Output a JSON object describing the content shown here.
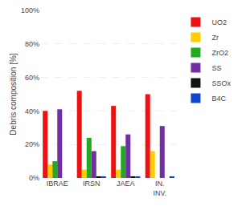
{
  "chart_data": {
    "type": "bar",
    "categories": [
      "IBRAE",
      "IRSN",
      "JAEA",
      "IN.\nINV."
    ],
    "series": [
      {
        "name": "UO2",
        "color": "#ee1111",
        "values": [
          40,
          52,
          43,
          50
        ]
      },
      {
        "name": "Zr",
        "color": "#ffcc00",
        "values": [
          8,
          5,
          5,
          16
        ]
      },
      {
        "name": "ZrO2",
        "color": "#22aa22",
        "values": [
          10,
          24,
          19,
          0
        ]
      },
      {
        "name": "SS",
        "color": "#7030a0",
        "values": [
          41,
          16,
          26,
          31
        ]
      },
      {
        "name": "SSOx",
        "color": "#111111",
        "values": [
          0,
          1,
          1,
          0
        ]
      },
      {
        "name": "B4C",
        "color": "#1144cc",
        "values": [
          0,
          1,
          1,
          1
        ]
      }
    ],
    "y_label": "Debris composition [%]",
    "ylim": [
      0,
      100
    ],
    "yticks": [
      {
        "value": 0,
        "label": "0%"
      },
      {
        "value": 20,
        "label": "20%"
      },
      {
        "value": 40,
        "label": "40%"
      },
      {
        "value": 60,
        "label": "60%"
      },
      {
        "value": 80,
        "label": "80%"
      },
      {
        "value": 100,
        "label": "100%"
      }
    ],
    "grid": true,
    "legend": "upper right"
  }
}
